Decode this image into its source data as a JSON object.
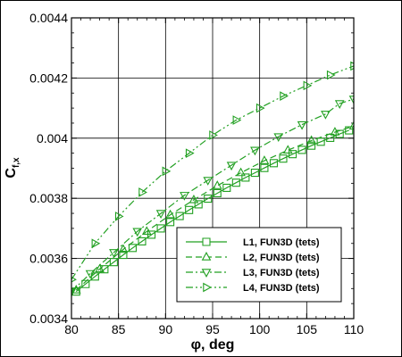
{
  "chart_data": {
    "type": "line",
    "xlabel_symbol": "φ",
    "xlabel_rest": ", deg",
    "ylabel_main": "C",
    "ylabel_sub": "f,x",
    "xlim": [
      80,
      110
    ],
    "ylim": [
      0.0034,
      0.0044
    ],
    "xticks": [
      80,
      85,
      90,
      95,
      100,
      105,
      110
    ],
    "xtick_labels": [
      "80",
      "85",
      "90",
      "95",
      "100",
      "105",
      "110"
    ],
    "yticks": [
      0.0034,
      0.0036,
      0.0038,
      0.004,
      0.0042,
      0.0044
    ],
    "ytick_labels": [
      "0.0034",
      "0.0036",
      "0.0038",
      "0.004",
      "0.0042",
      "0.0044"
    ],
    "grid": true,
    "legend_position": "bottom-right",
    "line_color": "#22a022",
    "series": [
      {
        "name": "L1, FUN3D (tets)",
        "marker": "square",
        "dash": "solid",
        "x": [
          80.5,
          81.5,
          82.5,
          83.5,
          84.5,
          85.5,
          86.5,
          87.5,
          88.5,
          89.5,
          90.5,
          91.5,
          92.5,
          93.5,
          94.5,
          95.5,
          96.5,
          97.5,
          98.5,
          99.5,
          100.5,
          101.5,
          102.5,
          103.5,
          104.5,
          105.5,
          106.5,
          107.5,
          108.5,
          109.5
        ],
        "y": [
          0.00349,
          0.003515,
          0.00354,
          0.003564,
          0.003588,
          0.003612,
          0.003635,
          0.003657,
          0.003679,
          0.0037,
          0.003721,
          0.003741,
          0.003761,
          0.00378,
          0.003799,
          0.003817,
          0.003835,
          0.003852,
          0.003869,
          0.003885,
          0.003901,
          0.003917,
          0.003932,
          0.003947,
          0.003961,
          0.003975,
          0.003988,
          0.004001,
          0.004014,
          0.004026
        ]
      },
      {
        "name": "L2, FUN3D (tets)",
        "marker": "triangle-up",
        "dash": "dash",
        "x": [
          80.5,
          83,
          85.5,
          88,
          90.5,
          93,
          95.5,
          98,
          100.5,
          103,
          105.5,
          108,
          110
        ],
        "y": [
          0.003495,
          0.003565,
          0.00363,
          0.00369,
          0.003745,
          0.003795,
          0.003842,
          0.003885,
          0.003925,
          0.00396,
          0.003992,
          0.00402,
          0.00404
        ]
      },
      {
        "name": "L3, FUN3D (tets)",
        "marker": "triangle-down",
        "dash": "dashdot",
        "x": [
          80,
          82,
          84.5,
          87,
          89.5,
          92,
          94.5,
          97,
          99.5,
          102,
          104.5,
          107,
          108.5,
          110
        ],
        "y": [
          0.00349,
          0.00355,
          0.00362,
          0.00369,
          0.00375,
          0.00381,
          0.00386,
          0.00391,
          0.00396,
          0.004005,
          0.004045,
          0.00408,
          0.004115,
          0.00413
        ]
      },
      {
        "name": "L4, FUN3D (tets)",
        "marker": "triangle-right",
        "dash": "dashdotdot",
        "x": [
          80,
          82.5,
          85,
          87.5,
          90,
          92.5,
          95,
          97.5,
          100,
          102.5,
          105,
          107.5,
          110
        ],
        "y": [
          0.00353,
          0.00365,
          0.00374,
          0.00382,
          0.00389,
          0.00395,
          0.00401,
          0.00406,
          0.0041,
          0.00414,
          0.004175,
          0.00421,
          0.00424
        ]
      }
    ]
  }
}
